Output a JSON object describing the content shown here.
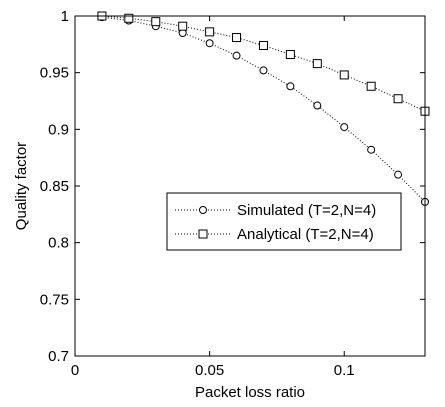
{
  "chart_data": {
    "type": "line",
    "title": "",
    "xlabel": "Packet loss ratio",
    "ylabel": "Quality factor",
    "xlim": [
      0,
      0.13
    ],
    "ylim": [
      0.7,
      1.0
    ],
    "xticks": [
      0,
      0.05,
      0.1
    ],
    "xtick_labels": [
      "0",
      "0.05",
      "0.1"
    ],
    "yticks": [
      0.7,
      0.75,
      0.8,
      0.85,
      0.9,
      0.95,
      1.0
    ],
    "ytick_labels": [
      "0.7",
      "0.75",
      "0.8",
      "0.85",
      "0.9",
      "0.95",
      "1"
    ],
    "grid": false,
    "legend_position": "center-right",
    "x": [
      0.01,
      0.02,
      0.03,
      0.04,
      0.05,
      0.06,
      0.07,
      0.08,
      0.09,
      0.1,
      0.11,
      0.12,
      0.13
    ],
    "series": [
      {
        "name": "Simulated (T=2,N=4)",
        "marker": "circle",
        "line_style": "dotted",
        "color": "#000000",
        "values": [
          0.999,
          0.996,
          0.991,
          0.985,
          0.976,
          0.965,
          0.952,
          0.938,
          0.921,
          0.902,
          0.882,
          0.86,
          0.836
        ]
      },
      {
        "name": "Analytical (T=2,N=4)",
        "marker": "square",
        "line_style": "dotted",
        "color": "#000000",
        "values": [
          1.0,
          0.998,
          0.995,
          0.991,
          0.986,
          0.981,
          0.974,
          0.966,
          0.958,
          0.948,
          0.938,
          0.927,
          0.916
        ]
      }
    ]
  }
}
